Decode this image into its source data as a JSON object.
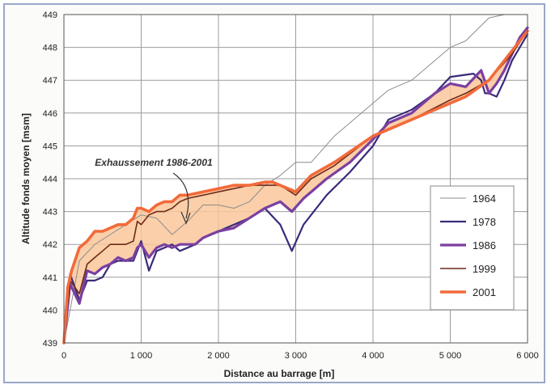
{
  "chart_data": {
    "type": "line",
    "xlabel": "Distance au barrage [m]",
    "ylabel": "Altitude fonds moyen [msm]",
    "xlim": [
      0,
      6000
    ],
    "ylim": [
      439,
      449
    ],
    "xticks": [
      "0",
      "1 000",
      "2 000",
      "3 000",
      "4 000",
      "5 000",
      "6 000"
    ],
    "xtick_values": [
      0,
      1000,
      2000,
      3000,
      4000,
      5000,
      6000
    ],
    "yticks": [
      "439",
      "440",
      "441",
      "442",
      "443",
      "444",
      "445",
      "446",
      "447",
      "448",
      "449"
    ],
    "ytick_values": [
      439,
      440,
      441,
      442,
      443,
      444,
      445,
      446,
      447,
      448,
      449
    ],
    "grid": true,
    "legend_position": "right",
    "annotation": "Exhaussement 1986-2001",
    "shaded_between": [
      "1986",
      "2001"
    ],
    "shade_color": "#f9c79a",
    "series": [
      {
        "name": "1964",
        "color": "#8c8c8c",
        "width": 1,
        "x": [
          0,
          200,
          400,
          600,
          800,
          1000,
          1200,
          1400,
          1600,
          1800,
          2000,
          2200,
          2400,
          2600,
          2800,
          3000,
          3200,
          3500,
          4000,
          4200,
          4500,
          5000,
          5200,
          5500,
          5700
        ],
        "y": [
          439.0,
          441.5,
          442.0,
          442.3,
          442.6,
          442.9,
          442.8,
          442.3,
          442.7,
          443.2,
          443.2,
          443.1,
          443.3,
          443.8,
          444.1,
          444.5,
          444.5,
          445.3,
          446.3,
          446.7,
          447.0,
          448.0,
          448.2,
          448.9,
          449.0
        ]
      },
      {
        "name": "1978",
        "color": "#3b2a7a",
        "width": 2.2,
        "x": [
          0,
          80,
          200,
          300,
          400,
          500,
          600,
          700,
          800,
          900,
          950,
          1000,
          1100,
          1200,
          1300,
          1400,
          1500,
          1600,
          1700,
          1800,
          1900,
          2000,
          2200,
          2400,
          2600,
          2800,
          2950,
          3100,
          3400,
          3700,
          4000,
          4200,
          4500,
          4800,
          5000,
          5300,
          5400,
          5450,
          5500,
          5600,
          5700,
          5800,
          5900,
          6000
        ],
        "y": [
          439.0,
          441.1,
          440.3,
          440.9,
          440.9,
          441.0,
          441.4,
          441.5,
          441.5,
          441.5,
          441.8,
          442.1,
          441.2,
          441.8,
          441.9,
          442.0,
          441.8,
          441.9,
          442.0,
          442.2,
          442.3,
          442.4,
          442.6,
          442.8,
          443.1,
          442.6,
          441.8,
          442.6,
          443.5,
          444.2,
          445.0,
          445.8,
          446.1,
          446.6,
          447.1,
          447.2,
          447.0,
          446.6,
          446.6,
          446.5,
          447.0,
          447.6,
          448.0,
          448.4
        ]
      },
      {
        "name": "1986",
        "color": "#7b3fa0",
        "width": 3.2,
        "x": [
          0,
          80,
          200,
          300,
          400,
          500,
          600,
          700,
          800,
          900,
          950,
          1000,
          1100,
          1200,
          1300,
          1400,
          1500,
          1600,
          1700,
          1800,
          1900,
          2000,
          2200,
          2400,
          2600,
          2800,
          2950,
          3100,
          3400,
          3700,
          4000,
          4200,
          4500,
          4800,
          5000,
          5200,
          5400,
          5500,
          5600,
          5700,
          5800,
          5900,
          6000
        ],
        "y": [
          439.0,
          440.8,
          440.2,
          441.2,
          441.1,
          441.3,
          441.4,
          441.6,
          441.5,
          441.6,
          441.9,
          442.0,
          441.6,
          441.9,
          442.0,
          441.9,
          442.0,
          442.0,
          442.0,
          442.2,
          442.3,
          442.4,
          442.5,
          442.8,
          443.1,
          443.3,
          443.0,
          443.4,
          444.0,
          444.5,
          445.2,
          445.7,
          446.0,
          446.6,
          446.9,
          446.8,
          447.3,
          446.6,
          446.9,
          447.3,
          447.8,
          448.3,
          448.6
        ]
      },
      {
        "name": "1999",
        "color": "#6e2a18",
        "width": 1.6,
        "x": [
          0,
          80,
          200,
          300,
          400,
          500,
          600,
          700,
          800,
          900,
          950,
          1000,
          1100,
          1200,
          1300,
          1400,
          1500,
          1600,
          1800,
          2000,
          2200,
          2400,
          2600,
          2800,
          3000,
          3200,
          3500,
          4000,
          4500,
          5000,
          5200,
          5500,
          5800,
          6000
        ],
        "y": [
          439.0,
          440.9,
          440.5,
          441.4,
          441.6,
          441.8,
          442.0,
          442.0,
          442.0,
          442.1,
          442.7,
          442.6,
          442.9,
          443.0,
          443.0,
          443.1,
          443.3,
          443.4,
          443.5,
          443.6,
          443.7,
          443.8,
          443.8,
          443.8,
          443.5,
          444.0,
          444.4,
          445.3,
          445.8,
          446.4,
          446.6,
          447.0,
          447.8,
          448.5
        ]
      },
      {
        "name": "2001",
        "color": "#f26a3a",
        "width": 3.6,
        "x": [
          0,
          50,
          100,
          200,
          300,
          400,
          500,
          600,
          700,
          800,
          900,
          950,
          1000,
          1100,
          1200,
          1300,
          1400,
          1500,
          1600,
          1800,
          2000,
          2200,
          2400,
          2600,
          2700,
          2800,
          3000,
          3200,
          3500,
          4000,
          4500,
          5000,
          5200,
          5500,
          5800,
          6000
        ],
        "y": [
          439.0,
          440.7,
          441.2,
          441.9,
          442.1,
          442.4,
          442.4,
          442.5,
          442.6,
          442.6,
          442.8,
          443.1,
          443.1,
          443.0,
          443.2,
          443.3,
          443.3,
          443.5,
          443.5,
          443.6,
          443.7,
          443.8,
          443.8,
          443.9,
          443.9,
          443.8,
          443.6,
          444.1,
          444.5,
          445.3,
          445.8,
          446.3,
          446.5,
          447.0,
          447.9,
          448.5
        ]
      }
    ]
  }
}
